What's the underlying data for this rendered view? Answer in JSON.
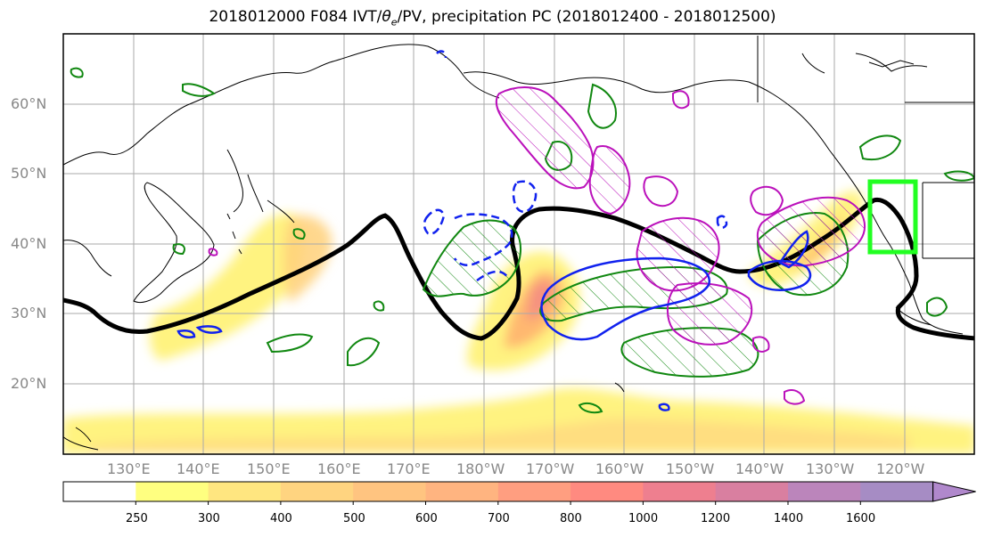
{
  "title_main": "2018012000 F084 IVT/",
  "title_theta": "θ",
  "title_sub": "e",
  "title_rest": "/PV, precipitation PC (2018012400 - 2018012500)",
  "lat_labels": [
    "60°N",
    "50°N",
    "40°N",
    "30°N",
    "20°N"
  ],
  "lon_labels": [
    "130°E",
    "140°E",
    "150°E",
    "160°E",
    "170°E",
    "180°W",
    "170°W",
    "160°W",
    "150°W",
    "140°W",
    "130°W",
    "120°W"
  ],
  "colorbar_ticks": [
    "250",
    "300",
    "400",
    "500",
    "600",
    "700",
    "800",
    "1000",
    "1200",
    "1400",
    "1600"
  ],
  "colorbar_colors": [
    "#ffffff",
    "#ffff80",
    "#ffe680",
    "#ffd480",
    "#ffc480",
    "#ffb480",
    "#ff9e80",
    "#ff8a80",
    "#ee7f8f",
    "#d97fa0",
    "#bb85bb",
    "#a68cc4"
  ],
  "colors": {
    "pv_contour": "#000000",
    "precip_green": "#118811",
    "precip_magenta": "#bb11bb",
    "precip_blue": "#1122ee",
    "target_box": "#22ff22",
    "ivt_low": "#fff380",
    "ivt_mid": "#ffc870",
    "ivt_high": "#f59080"
  }
}
